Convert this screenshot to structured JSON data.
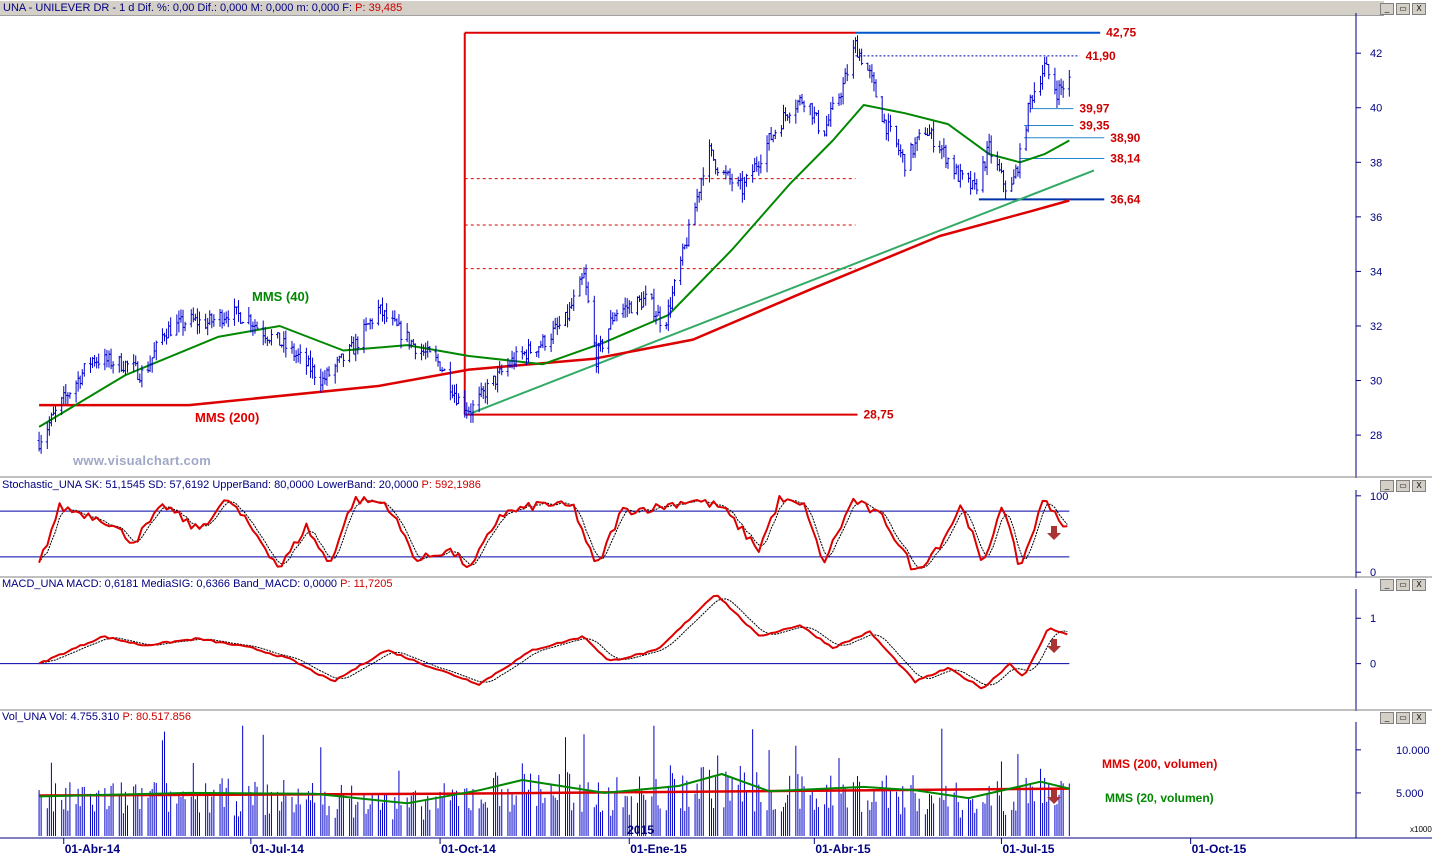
{
  "header": {
    "main": "UNA - UNILEVER DR - 1 d Dif. %: 0,00 Dif.: 0,000 M: 0,000 m: 0,000 F:",
    "main_p": "P: 39,485",
    "stoch": "Stochastic_UNA SK: 51,1545 SD: 57,6192 UpperBand: 80,0000 LowerBand: 20,0000",
    "stoch_p": "P: 592,1986",
    "macd": "MACD_UNA MACD: 0,6181 MediaSIG: 0,6366 Band_MACD: 0,0000",
    "macd_p": "P: 11,7205",
    "vol": "Vol_UNA Vol: 4.755.310",
    "vol_p": "P: 80.517.856"
  },
  "window_buttons": {
    "restore": "▭",
    "min": "_",
    "close": "X"
  },
  "watermark": "www.visualchart.com",
  "colors": {
    "price": "#0000cc",
    "mms200": "#dd0000",
    "mms40": "#008800",
    "trend": "#33aa66",
    "accent_label": "#cc0000",
    "axis": "#000080"
  },
  "chart_data": [
    {
      "type": "candlestick",
      "name": "UNA - UNILEVER DR",
      "x_ticks": [
        "01-Abr-14",
        "01-Jul-14",
        "01-Oct-14",
        "01-Ene-15",
        "01-Abr-15",
        "01-Jul-15",
        "01-Oct-15"
      ],
      "year_label": "2015",
      "y_ticks": [
        28,
        30,
        32,
        34,
        36,
        38,
        40,
        42
      ],
      "ylim": [
        26.5,
        43.4
      ],
      "price_path": [
        [
          "2014-03-20",
          27.8
        ],
        [
          "2014-04-01",
          29.3
        ],
        [
          "2014-04-15",
          30.8
        ],
        [
          "2014-05-01",
          30.6
        ],
        [
          "2014-05-10",
          30.2
        ],
        [
          "2014-05-20",
          31.8
        ],
        [
          "2014-06-01",
          32.2
        ],
        [
          "2014-06-10",
          32.1
        ],
        [
          "2014-06-20",
          32.5
        ],
        [
          "2014-06-30",
          32.3
        ],
        [
          "2014-07-05",
          31.9
        ],
        [
          "2014-07-15",
          31.4
        ],
        [
          "2014-07-25",
          30.8
        ],
        [
          "2014-08-05",
          30.0
        ],
        [
          "2014-08-20",
          31.2
        ],
        [
          "2014-09-01",
          32.6
        ],
        [
          "2014-09-10",
          31.9
        ],
        [
          "2014-09-20",
          31.2
        ],
        [
          "2014-10-01",
          30.6
        ],
        [
          "2014-10-10",
          29.3
        ],
        [
          "2014-10-16",
          28.9
        ],
        [
          "2014-10-25",
          29.8
        ],
        [
          "2014-11-05",
          30.7
        ],
        [
          "2014-11-20",
          31.4
        ],
        [
          "2014-12-01",
          32.2
        ],
        [
          "2014-12-10",
          33.8
        ],
        [
          "2014-12-16",
          30.8
        ],
        [
          "2014-12-25",
          32.5
        ],
        [
          "2015-01-10",
          33.0
        ],
        [
          "2015-01-18",
          32.0
        ],
        [
          "2015-01-25",
          34.0
        ],
        [
          "2015-02-01",
          36.0
        ],
        [
          "2015-02-08",
          38.5
        ],
        [
          "2015-02-15",
          37.6
        ],
        [
          "2015-02-25",
          37.0
        ],
        [
          "2015-03-10",
          38.8
        ],
        [
          "2015-03-20",
          40.0
        ],
        [
          "2015-03-28",
          40.4
        ],
        [
          "2015-04-05",
          39.0
        ],
        [
          "2015-04-15",
          40.8
        ],
        [
          "2015-04-21",
          42.3
        ],
        [
          "2015-04-28",
          41.2
        ],
        [
          "2015-05-05",
          39.5
        ],
        [
          "2015-05-15",
          38.0
        ],
        [
          "2015-05-25",
          39.2
        ],
        [
          "2015-06-01",
          38.6
        ],
        [
          "2015-06-10",
          37.5
        ],
        [
          "2015-06-18",
          37.0
        ],
        [
          "2015-06-25",
          38.5
        ],
        [
          "2015-06-30",
          37.6
        ],
        [
          "2015-07-05",
          36.8
        ],
        [
          "2015-07-10",
          38.2
        ],
        [
          "2015-07-15",
          40.3
        ],
        [
          "2015-07-22",
          41.5
        ],
        [
          "2015-07-28",
          40.6
        ],
        [
          "2015-08-03",
          41.0
        ]
      ],
      "mms40_path": [
        [
          "2014-03-20",
          28.3
        ],
        [
          "2014-05-01",
          30.2
        ],
        [
          "2014-06-15",
          31.6
        ],
        [
          "2014-07-15",
          32.0
        ],
        [
          "2014-08-15",
          31.1
        ],
        [
          "2014-09-15",
          31.3
        ],
        [
          "2014-10-15",
          30.9
        ],
        [
          "2014-11-20",
          30.6
        ],
        [
          "2014-12-20",
          31.4
        ],
        [
          "2015-01-20",
          32.4
        ],
        [
          "2015-02-20",
          34.8
        ],
        [
          "2015-03-20",
          37.2
        ],
        [
          "2015-04-10",
          38.8
        ],
        [
          "2015-04-25",
          40.1
        ],
        [
          "2015-05-15",
          39.8
        ],
        [
          "2015-06-05",
          39.4
        ],
        [
          "2015-06-25",
          38.3
        ],
        [
          "2015-07-10",
          38.0
        ],
        [
          "2015-07-22",
          38.3
        ],
        [
          "2015-08-03",
          38.8
        ]
      ],
      "mms200_path": [
        [
          "2014-03-20",
          29.1
        ],
        [
          "2014-06-01",
          29.1
        ],
        [
          "2014-09-01",
          29.8
        ],
        [
          "2014-10-15",
          30.4
        ],
        [
          "2014-12-15",
          30.8
        ],
        [
          "2015-02-01",
          31.5
        ],
        [
          "2015-04-01",
          33.4
        ],
        [
          "2015-06-01",
          35.3
        ],
        [
          "2015-07-15",
          36.2
        ],
        [
          "2015-08-03",
          36.6
        ]
      ],
      "trendline": [
        [
          "2014-10-16",
          28.8
        ],
        [
          "2015-08-15",
          37.7
        ]
      ],
      "levels": [
        {
          "label": "42,75",
          "value": 42.75,
          "from": "2015-04-21",
          "to": "2015-08-18"
        },
        {
          "label": "41,90",
          "value": 41.9,
          "from": "2015-04-21",
          "to": "2015-08-08"
        },
        {
          "label": "39,97",
          "value": 39.97,
          "from": "2015-07-15",
          "to": "2015-08-05"
        },
        {
          "label": "39,35",
          "value": 39.35,
          "from": "2015-07-12",
          "to": "2015-08-05"
        },
        {
          "label": "38,90",
          "value": 38.9,
          "from": "2015-07-12",
          "to": "2015-08-20"
        },
        {
          "label": "38,14",
          "value": 38.14,
          "from": "2015-07-10",
          "to": "2015-08-20"
        },
        {
          "label": "36,64",
          "value": 36.64,
          "from": "2015-06-20",
          "to": "2015-08-20"
        },
        {
          "label": "28,75",
          "value": 28.75,
          "from": "2014-10-13",
          "to": "2015-04-22"
        }
      ],
      "fib_box": {
        "from": "2014-10-13",
        "to": "2015-04-21",
        "low": 28.75,
        "high": 42.75,
        "retracements": [
          37.4,
          35.7,
          34.1
        ]
      },
      "series_labels": {
        "mms40": "MMS (40)",
        "mms200": "MMS (200)"
      }
    },
    {
      "type": "line",
      "name": "Stochastic_UNA",
      "y_ticks": [
        0,
        100
      ],
      "ylim": [
        -5,
        105
      ],
      "bands": [
        20,
        80
      ],
      "series": [
        {
          "name": "SK"
        },
        {
          "name": "SD"
        }
      ],
      "sk_path": [
        [
          "2014-03-20",
          10
        ],
        [
          "2014-03-30",
          85
        ],
        [
          "2014-04-20",
          70
        ],
        [
          "2014-05-05",
          40
        ],
        [
          "2014-05-20",
          88
        ],
        [
          "2014-06-05",
          55
        ],
        [
          "2014-06-20",
          95
        ],
        [
          "2014-07-05",
          45
        ],
        [
          "2014-07-15",
          5
        ],
        [
          "2014-07-28",
          60
        ],
        [
          "2014-08-08",
          10
        ],
        [
          "2014-08-20",
          95
        ],
        [
          "2014-09-05",
          90
        ],
        [
          "2014-09-20",
          15
        ],
        [
          "2014-10-05",
          30
        ],
        [
          "2014-10-16",
          5
        ],
        [
          "2014-10-30",
          75
        ],
        [
          "2014-11-20",
          90
        ],
        [
          "2014-12-05",
          85
        ],
        [
          "2014-12-16",
          5
        ],
        [
          "2014-12-28",
          80
        ],
        [
          "2015-01-15",
          85
        ],
        [
          "2015-02-01",
          95
        ],
        [
          "2015-02-15",
          85
        ],
        [
          "2015-03-05",
          30
        ],
        [
          "2015-03-15",
          95
        ],
        [
          "2015-03-28",
          85
        ],
        [
          "2015-04-05",
          10
        ],
        [
          "2015-04-20",
          95
        ],
        [
          "2015-05-05",
          70
        ],
        [
          "2015-05-20",
          0
        ],
        [
          "2015-06-02",
          40
        ],
        [
          "2015-06-12",
          90
        ],
        [
          "2015-06-22",
          5
        ],
        [
          "2015-07-01",
          90
        ],
        [
          "2015-07-10",
          5
        ],
        [
          "2015-07-22",
          98
        ],
        [
          "2015-08-03",
          51
        ]
      ]
    },
    {
      "type": "line",
      "name": "MACD_UNA",
      "y_ticks": [
        0,
        1
      ],
      "ylim": [
        -1.0,
        1.6
      ],
      "series": [
        {
          "name": "MACD"
        },
        {
          "name": "MediaSIG"
        }
      ],
      "macd_path": [
        [
          "2014-03-20",
          0.0
        ],
        [
          "2014-04-20",
          0.6
        ],
        [
          "2014-05-10",
          0.4
        ],
        [
          "2014-06-05",
          0.55
        ],
        [
          "2014-07-01",
          0.35
        ],
        [
          "2014-07-20",
          0.1
        ],
        [
          "2014-08-10",
          -0.4
        ],
        [
          "2014-09-05",
          0.3
        ],
        [
          "2014-09-25",
          -0.05
        ],
        [
          "2014-10-20",
          -0.45
        ],
        [
          "2014-11-15",
          0.3
        ],
        [
          "2014-12-10",
          0.6
        ],
        [
          "2014-12-22",
          0.05
        ],
        [
          "2015-01-15",
          0.3
        ],
        [
          "2015-02-12",
          1.55
        ],
        [
          "2015-03-05",
          0.6
        ],
        [
          "2015-03-25",
          0.85
        ],
        [
          "2015-04-10",
          0.35
        ],
        [
          "2015-04-28",
          0.7
        ],
        [
          "2015-05-20",
          -0.4
        ],
        [
          "2015-06-05",
          -0.1
        ],
        [
          "2015-06-22",
          -0.55
        ],
        [
          "2015-07-05",
          0.0
        ],
        [
          "2015-07-12",
          -0.3
        ],
        [
          "2015-07-24",
          0.8
        ],
        [
          "2015-08-03",
          0.62
        ]
      ]
    },
    {
      "type": "bar",
      "name": "Vol_UNA",
      "unit_label": "x1000",
      "y_ticks": [
        5000,
        10000
      ],
      "y_tick_labels": [
        "5.000",
        "10.000"
      ],
      "ylim": [
        0,
        13000
      ],
      "series_labels": {
        "mms200v": "MMS (200, volumen)",
        "mms20v": "MMS (20, volumen)"
      },
      "mms20_path": [
        [
          "2014-03-20",
          4600
        ],
        [
          "2014-06-01",
          5000
        ],
        [
          "2014-08-01",
          4900
        ],
        [
          "2014-09-15",
          3800
        ],
        [
          "2014-10-20",
          5300
        ],
        [
          "2014-11-10",
          6500
        ],
        [
          "2014-12-20",
          5000
        ],
        [
          "2015-01-25",
          5800
        ],
        [
          "2015-02-15",
          7200
        ],
        [
          "2015-03-10",
          5200
        ],
        [
          "2015-04-25",
          5700
        ],
        [
          "2015-05-20",
          5300
        ],
        [
          "2015-06-15",
          4400
        ],
        [
          "2015-07-20",
          6300
        ],
        [
          "2015-08-03",
          5500
        ]
      ],
      "mms200_path": [
        [
          "2014-03-20",
          4700
        ],
        [
          "2014-10-01",
          4900
        ],
        [
          "2015-08-03",
          5500
        ]
      ]
    }
  ]
}
